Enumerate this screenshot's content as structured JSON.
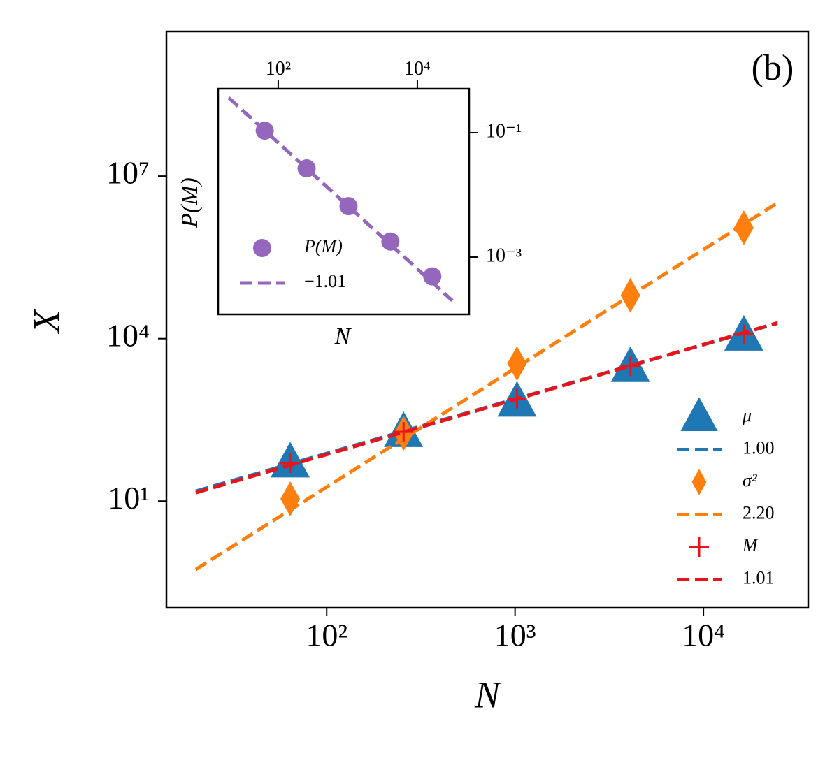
{
  "chart_data": [
    {
      "type": "scatter",
      "xscale": "log",
      "yscale": "log",
      "xlabel": "N",
      "ylabel": "X",
      "annotation": "(b)",
      "xlim": [
        14.1,
        36000
      ],
      "ylim": [
        0.107,
        4700000000
      ],
      "xticks": [
        {
          "value": 100,
          "label": "10²"
        },
        {
          "value": 1000,
          "label": "10³"
        },
        {
          "value": 10000,
          "label": "10⁴"
        }
      ],
      "yticks": [
        {
          "value": 10,
          "label": "10¹"
        },
        {
          "value": 10000,
          "label": "10⁴"
        },
        {
          "value": 10000000,
          "label": "10⁷"
        }
      ],
      "legend": "lower right",
      "series": [
        {
          "name": "μ",
          "color": "#1f77b4",
          "marker": "triangle",
          "x": [
            64,
            256,
            1024,
            4096,
            16384
          ],
          "values": [
            51,
            186,
            676,
            2950,
            11200
          ]
        },
        {
          "name": "1.00",
          "color": "#1f77b4",
          "marker": "dashed",
          "x": [
            20.2,
            24700
          ],
          "values": [
            15.2,
            19200
          ]
        },
        {
          "name": "σ²",
          "color": "#ff7f0e",
          "marker": "diamond",
          "x": [
            64,
            256,
            1024,
            4096,
            16384
          ],
          "values": [
            11,
            178,
            3470,
            63000,
            1120000
          ]
        },
        {
          "name": "2.20",
          "color": "#ff7f0e",
          "marker": "dashed",
          "x": [
            20.2,
            24700
          ],
          "values": [
            0.546,
            3200000
          ]
        },
        {
          "name": "M",
          "color": "#e8141b",
          "marker": "plus",
          "x": [
            64,
            256,
            1024,
            4096,
            16384
          ],
          "values": [
            50,
            190,
            780,
            3090,
            12000
          ]
        },
        {
          "name": "1.01",
          "color": "#e8141b",
          "marker": "dashed",
          "x": [
            20.2,
            24700
          ],
          "values": [
            14.3,
            19500
          ]
        }
      ]
    },
    {
      "type": "scatter",
      "xscale": "log",
      "yscale": "log",
      "xlabel": "N",
      "ylabel": "P(M)",
      "xaxis_position": "top",
      "yaxis_position": "right",
      "xlim": [
        13.7,
        55500
      ],
      "ylim": [
        0.00012,
        0.51
      ],
      "xticks": [
        {
          "value": 100,
          "label": "10²"
        },
        {
          "value": 10000,
          "label": "10⁴"
        }
      ],
      "yticks": [
        {
          "value": 0.1,
          "label": "10⁻¹"
        },
        {
          "value": 0.001,
          "label": "10⁻³"
        }
      ],
      "legend": "lower left",
      "series": [
        {
          "name": "P(M)",
          "color": "#9467bd",
          "marker": "circle",
          "x": [
            64,
            256,
            1024,
            4096,
            16384
          ],
          "values": [
            0.108,
            0.0267,
            0.0066,
            0.00178,
            0.00049
          ]
        },
        {
          "name": "−1.01",
          "color": "#9467bd",
          "marker": "dashed",
          "x": [
            19.4,
            31800
          ],
          "values": [
            0.365,
            0.0002
          ]
        }
      ]
    }
  ]
}
